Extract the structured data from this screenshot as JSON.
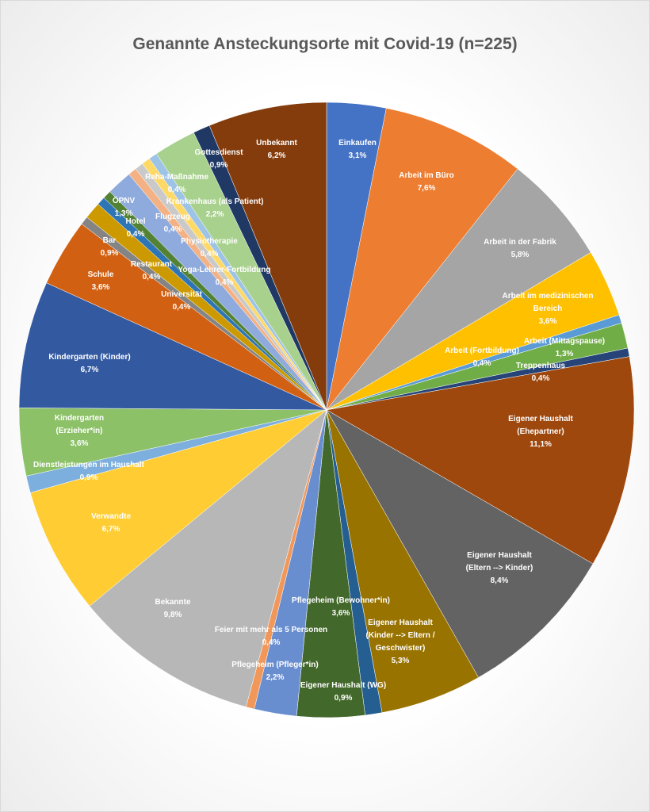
{
  "chart_data": {
    "type": "pie",
    "title": "Genannte Ansteckungsorte mit Covid-19 (n=225)",
    "start": "top, clockwise",
    "slices": [
      {
        "name": "Einkaufen",
        "label": "3,1%",
        "count": 7,
        "value": 3.1,
        "color": "#4472C4"
      },
      {
        "name": "Arbeit im Büro",
        "label": "7,6%",
        "count": 17,
        "value": 7.6,
        "color": "#ED7D31"
      },
      {
        "name": "Arbeit in der Fabrik",
        "label": "5,8%",
        "count": 13,
        "value": 5.8,
        "color": "#A5A5A5"
      },
      {
        "name": "Arbeit im medizinischen\nBereich",
        "label": "3,6%",
        "count": 8,
        "value": 3.6,
        "color": "#FFC000"
      },
      {
        "name": "Arbeit (Fortbildung)",
        "label": "0,4%",
        "count": 1,
        "value": 0.4,
        "color": "#5B9BD5"
      },
      {
        "name": "Arbeit (Mittagspause)",
        "label": "1,3%",
        "count": 3,
        "value": 1.3,
        "color": "#70AD47"
      },
      {
        "name": "Treppenhaus",
        "label": "0,4%",
        "count": 1,
        "value": 0.4,
        "color": "#264478"
      },
      {
        "name": "Eigener Haushalt (Ehepartner)",
        "label": "11,1%",
        "count": 25,
        "value": 11.1,
        "color": "#9E480E"
      },
      {
        "name": "Eigener Haushalt\n(Eltern --> Kinder)",
        "label": "8,4%",
        "count": 19,
        "value": 8.4,
        "color": "#636363"
      },
      {
        "name": "Eigener Haushalt\n(Kinder --> Eltern /\nGeschwister)",
        "label": "5,3%",
        "count": 12,
        "value": 5.3,
        "color": "#997300"
      },
      {
        "name": "Eigener Haushalt (WG)",
        "label": "0,9%",
        "count": 2,
        "value": 0.9,
        "color": "#255E91"
      },
      {
        "name": "Pflegeheim (Bewohner*in)",
        "label": "3,6%",
        "count": 8,
        "value": 3.6,
        "color": "#43682B"
      },
      {
        "name": "Pflegeheim (Pfleger*in)",
        "label": "2,2%",
        "count": 5,
        "value": 2.2,
        "color": "#698ED0"
      },
      {
        "name": "Feier mit mehr als 5 Personen",
        "label": "0,4%",
        "count": 1,
        "value": 0.4,
        "color": "#F1975A"
      },
      {
        "name": "Bekannte",
        "label": "9,8%",
        "count": 22,
        "value": 9.8,
        "color": "#B7B7B7"
      },
      {
        "name": "Verwandte",
        "label": "6,7%",
        "count": 15,
        "value": 6.7,
        "color": "#FFCD33"
      },
      {
        "name": "Dienstleistungen im Haushalt",
        "label": "0,9%",
        "count": 2,
        "value": 0.9,
        "color": "#7CAFDD"
      },
      {
        "name": "Kindergarten\n(Erzieher*in)",
        "label": "3,6%",
        "count": 8,
        "value": 3.6,
        "color": "#8CC168"
      },
      {
        "name": "Kindergarten (Kinder)",
        "label": "6,7%",
        "count": 15,
        "value": 6.7,
        "color": "#335AA1"
      },
      {
        "name": "Schule",
        "label": "3,6%",
        "count": 8,
        "value": 3.6,
        "color": "#D26012"
      },
      {
        "name": "Universität",
        "label": "0,4%",
        "count": 1,
        "value": 0.4,
        "color": "#848484"
      },
      {
        "name": "Bar",
        "label": "0,9%",
        "count": 2,
        "value": 0.9,
        "color": "#CC9A00"
      },
      {
        "name": "Restaurant",
        "label": "0,4%",
        "count": 1,
        "value": 0.4,
        "color": "#2E75B6"
      },
      {
        "name": "Hotel",
        "label": "0,4%",
        "count": 1,
        "value": 0.4,
        "color": "#548235"
      },
      {
        "name": "ÖPNV",
        "label": "1,3%",
        "count": 3,
        "value": 1.3,
        "color": "#8FAADC"
      },
      {
        "name": "Flugzeug",
        "label": "0,4%",
        "count": 1,
        "value": 0.4,
        "color": "#F4B183"
      },
      {
        "name": "Physiotherapie",
        "label": "0,4%",
        "count": 1,
        "value": 0.4,
        "color": "#C9C9C9"
      },
      {
        "name": "Yoga-Lehrer-Fortbildung",
        "label": "0,4%",
        "count": 1,
        "value": 0.4,
        "color": "#FFD966"
      },
      {
        "name": "Reha-Maßnahme",
        "label": "0,4%",
        "count": 1,
        "value": 0.4,
        "color": "#9DC3E6"
      },
      {
        "name": "Krankenhaus (als Patient)",
        "label": "2,2%",
        "count": 5,
        "value": 2.2,
        "color": "#A9D18E"
      },
      {
        "name": "Gottesdienst",
        "label": "0,9%",
        "count": 2,
        "value": 0.9,
        "color": "#203864"
      },
      {
        "name": "Unbekannt",
        "label": "6,2%",
        "count": 14,
        "value": 6.2,
        "color": "#843C0C"
      }
    ]
  }
}
